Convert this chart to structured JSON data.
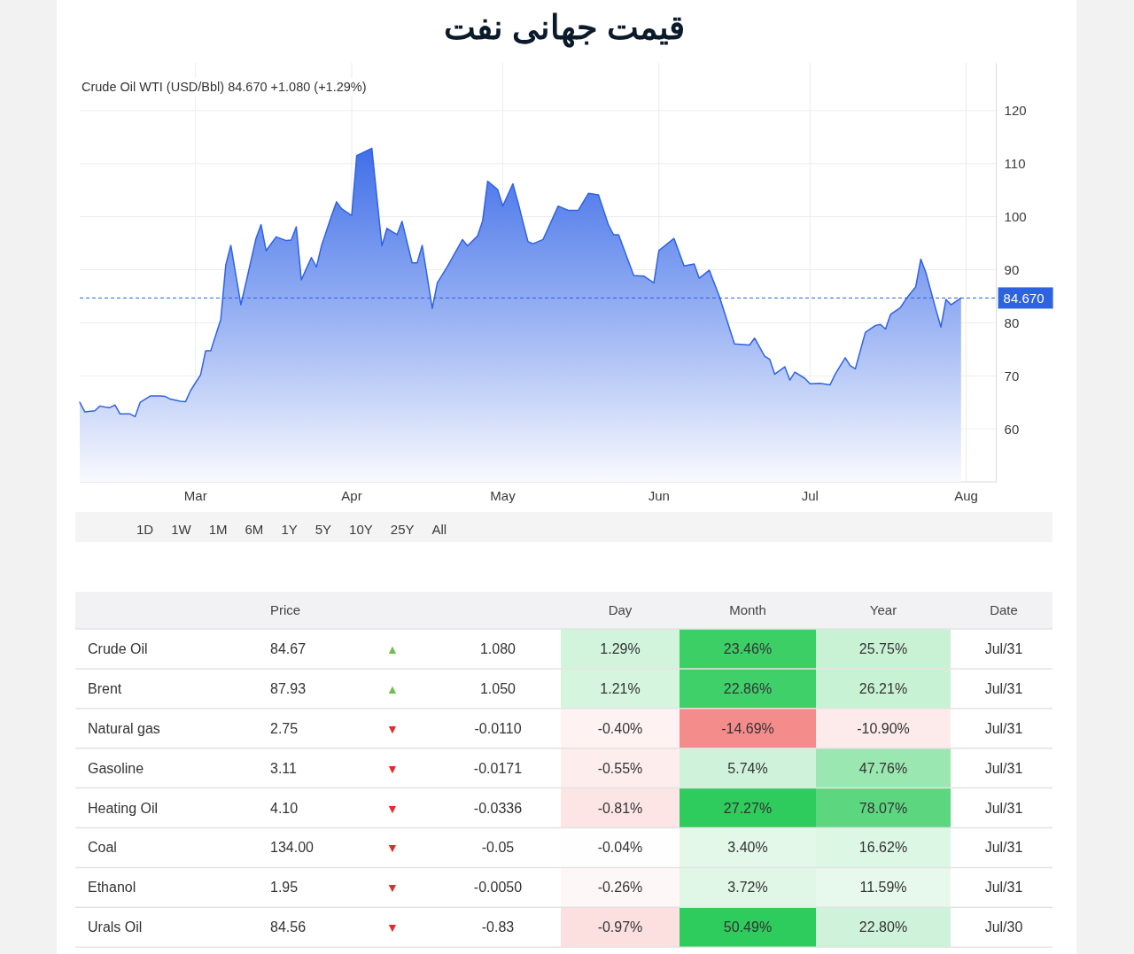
{
  "chart_data": [
    {
      "type": "area",
      "title": "قیمت جهانی نفت",
      "subtitle": "Crude Oil WTI (USD/Bbl) 84.670 +1.080 (+1.29%)",
      "x": [
        "--02-06",
        "--02-07",
        "--02-09",
        "--02-10",
        "--02-11",
        "--02-12",
        "--02-13",
        "--02-14",
        "--02-16",
        "--02-17",
        "--02-18",
        "--02-20",
        "--02-22",
        "--02-23",
        "--02-24",
        "--02-26",
        "--02-27",
        "--02-28",
        "--03-02",
        "--03-03",
        "--03-04",
        "--03-06",
        "--03-07",
        "--03-08",
        "--03-10",
        "--03-11",
        "--03-13",
        "--03-14",
        "--03-15",
        "--03-17",
        "--03-19",
        "--03-20",
        "--03-21",
        "--03-22",
        "--03-24",
        "--03-25",
        "--03-26",
        "--03-28",
        "--03-29",
        "--03-30",
        "--04-01",
        "--04-02",
        "--04-05",
        "--04-07",
        "--04-08",
        "--04-10",
        "--04-11",
        "--04-13",
        "--04-14",
        "--04-15",
        "--04-17",
        "--04-18",
        "--04-20",
        "--04-23",
        "--04-24",
        "--04-26",
        "--04-27",
        "--04-28",
        "--04-30",
        "--05-01",
        "--05-03",
        "--05-04",
        "--05-06",
        "--05-07",
        "--05-09",
        "--05-12",
        "--05-14",
        "--05-16",
        "--05-18",
        "--05-20",
        "--05-22",
        "--05-23",
        "--05-24",
        "--05-27",
        "--05-29",
        "--05-31",
        "--06-01",
        "--06-04",
        "--06-06",
        "--06-08",
        "--06-09",
        "--06-11",
        "--06-13",
        "--06-16",
        "--06-19",
        "--06-20",
        "--06-22",
        "--06-23",
        "--06-24",
        "--06-26",
        "--06-27",
        "--06-28",
        "--06-30",
        "--07-01",
        "--07-03",
        "--07-05",
        "--07-06",
        "--07-08",
        "--07-09",
        "--07-10",
        "--07-12",
        "--07-14",
        "--07-15",
        "--07-16",
        "--07-17",
        "--07-19",
        "--07-20",
        "--07-22",
        "--07-23",
        "--07-24",
        "--07-26",
        "--07-27",
        "--07-28",
        "--07-29",
        "--07-31"
      ],
      "values": [
        65.0,
        63.2,
        63.4,
        64.3,
        64.1,
        64.0,
        64.5,
        62.8,
        62.8,
        62.3,
        65.0,
        66.2,
        66.2,
        66.1,
        65.6,
        65.2,
        65.1,
        67.2,
        70.2,
        74.7,
        74.7,
        80.6,
        90.9,
        94.6,
        83.4,
        87.5,
        95.9,
        98.5,
        93.6,
        96.2,
        95.5,
        95.6,
        98.1,
        88.1,
        92.3,
        90.5,
        94.5,
        100.2,
        102.8,
        101.5,
        100.2,
        111.5,
        112.9,
        94.5,
        97.8,
        96.6,
        99.1,
        91.3,
        91.3,
        94.6,
        82.7,
        87.5,
        90.6,
        95.7,
        94.5,
        96.4,
        99.2,
        106.7,
        105.1,
        102.0,
        106.2,
        102.8,
        95.3,
        94.9,
        95.7,
        102.0,
        101.2,
        101.2,
        104.4,
        104.1,
        98.4,
        96.6,
        96.6,
        88.9,
        88.8,
        87.5,
        93.6,
        95.9,
        90.7,
        91.1,
        88.4,
        89.9,
        85.0,
        76.0,
        75.8,
        77.1,
        73.7,
        73.1,
        70.3,
        71.7,
        69.2,
        70.7,
        69.5,
        68.5,
        68.6,
        68.3,
        70.3,
        73.4,
        71.9,
        71.3,
        78.2,
        79.5,
        79.7,
        78.8,
        81.6,
        82.9,
        84.4,
        86.8,
        92.0,
        89.5,
        82.5,
        79.2,
        84.4,
        83.4,
        84.67
      ],
      "color": "#2f62e6",
      "xlim": [
        "--02-06",
        "--08-07"
      ],
      "xticks": [
        {
          "value": "--03-01",
          "label": "Mar"
        },
        {
          "value": "--04-01",
          "label": "Apr"
        },
        {
          "value": "--05-01",
          "label": "May"
        },
        {
          "value": "--06-01",
          "label": "Jun"
        },
        {
          "value": "--07-01",
          "label": "Jul"
        },
        {
          "value": "--08-01",
          "label": "Aug"
        }
      ],
      "ylim": [
        50,
        129
      ],
      "yticks": [
        60,
        70,
        80,
        90,
        100,
        110,
        120
      ],
      "grid": true,
      "ref_lines": [
        {
          "axis": "y",
          "value": 84.67,
          "label": "84.670",
          "color": "#2d62e0",
          "line_style": "dashed"
        }
      ],
      "annotations": [
        "1D",
        "1W",
        "1M",
        "6M",
        "1Y",
        "5Y",
        "10Y",
        "25Y",
        "All"
      ]
    },
    {
      "type": "heatmap",
      "categories": [
        "Price",
        null,
        null,
        "Day",
        "Month",
        "Year"
      ],
      "y_categories": [
        "Crude Oil",
        "Brent",
        "Natural gas",
        "Gasoline",
        "Heating Oil",
        "Coal",
        "Ethanol",
        "Urals Oil"
      ],
      "y2label": "Date",
      "y2_categories": [
        "Jul/31",
        "Jul/31",
        "Jul/31",
        "Jul/31",
        "Jul/31",
        "Jul/31",
        "Jul/31",
        "Jul/30"
      ],
      "cells": [
        [
          null,
          null,
          null,
          1.29,
          23.46,
          25.75
        ],
        [
          null,
          null,
          null,
          1.21,
          22.86,
          26.21
        ],
        [
          null,
          null,
          null,
          -0.4,
          -14.69,
          -10.9
        ],
        [
          null,
          null,
          null,
          -0.55,
          5.74,
          47.76
        ],
        [
          null,
          null,
          null,
          -0.81,
          27.27,
          78.07
        ],
        [
          null,
          null,
          null,
          -0.04,
          3.4,
          16.62
        ],
        [
          null,
          null,
          null,
          -0.26,
          3.72,
          11.59
        ],
        [
          null,
          null,
          null,
          -0.97,
          50.49,
          22.8
        ]
      ],
      "cell_labels": [
        [
          "84.67",
          "▲",
          "1.080",
          "1.29%",
          "23.46%",
          "25.75%"
        ],
        [
          "87.93",
          "▲",
          "1.050",
          "1.21%",
          "22.86%",
          "26.21%"
        ],
        [
          "2.75",
          "▼",
          "-0.0110",
          "-0.40%",
          "-14.69%",
          "-10.90%"
        ],
        [
          "3.11",
          "▼",
          "-0.0171",
          "-0.55%",
          "5.74%",
          "47.76%"
        ],
        [
          "4.10",
          "▼",
          "-0.0336",
          "-0.81%",
          "27.27%",
          "78.07%"
        ],
        [
          "134.00",
          "▼",
          "-0.05",
          "-0.04%",
          "3.40%",
          "16.62%"
        ],
        [
          "1.95",
          "▼",
          "-0.0050",
          "-0.26%",
          "3.72%",
          "11.59%"
        ],
        [
          "84.56",
          "▼",
          "-0.83",
          "-0.97%",
          "50.49%",
          "22.80%"
        ]
      ],
      "colors": [
        [
          null,
          "#6cbf4e",
          null,
          null,
          null,
          null
        ],
        [
          null,
          "#6cbf4e",
          null,
          null,
          null,
          null
        ],
        [
          null,
          "#e32b2b",
          null,
          null,
          null,
          null
        ],
        [
          null,
          "#e32b2b",
          null,
          null,
          null,
          null
        ],
        [
          null,
          "#e32b2b",
          null,
          null,
          null,
          null
        ],
        [
          null,
          "#e32b2b",
          null,
          null,
          null,
          null
        ],
        [
          null,
          "#e32b2b",
          null,
          null,
          null,
          null
        ],
        [
          null,
          "#e32b2b",
          null,
          null,
          null,
          null
        ]
      ]
    }
  ]
}
